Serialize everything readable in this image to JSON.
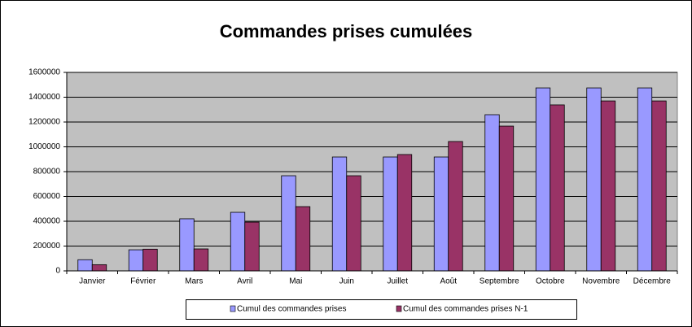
{
  "chart_data": {
    "type": "bar",
    "title": "Commandes prises cumulées",
    "categories": [
      "Janvier",
      "Février",
      "Mars",
      "Avril",
      "Mai",
      "Juin",
      "Juillet",
      "Août",
      "Septembre",
      "Octobre",
      "Novembre",
      "Décembre"
    ],
    "series": [
      {
        "name": "Cumul des commandes prises",
        "color": "#9999ff",
        "values": [
          90000,
          170000,
          420000,
          472000,
          767000,
          918000,
          918000,
          918000,
          1259000,
          1475000,
          1475000,
          1475000
        ]
      },
      {
        "name": "Cumul des commandes prises N-1",
        "color": "#993366",
        "values": [
          50000,
          175000,
          177000,
          393000,
          518000,
          767000,
          938000,
          1043000,
          1167000,
          1338000,
          1370000,
          1370000
        ]
      }
    ],
    "ylim": [
      0,
      1600000
    ],
    "yticks": [
      0,
      200000,
      400000,
      600000,
      800000,
      1000000,
      1200000,
      1400000,
      1600000
    ],
    "grid": true,
    "legend": "bottom"
  }
}
